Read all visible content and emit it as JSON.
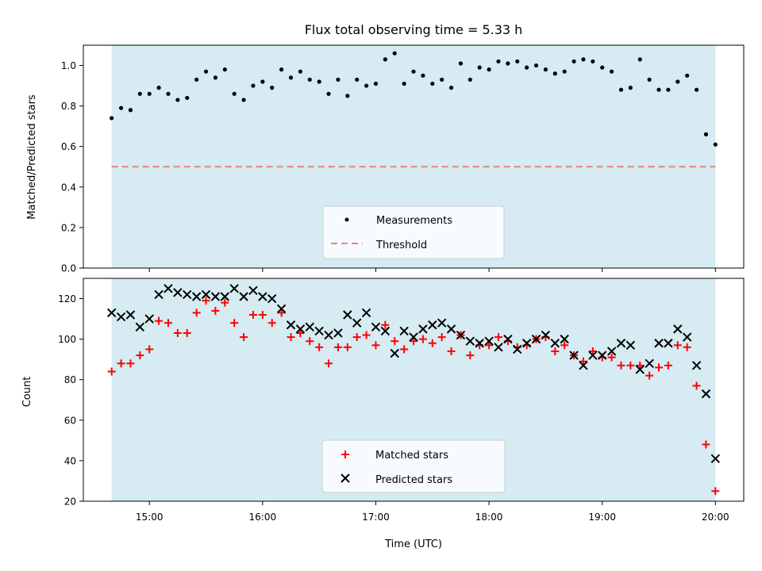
{
  "chart_data": [
    {
      "type": "scatter",
      "title": "Flux total observing time = 5.33 h",
      "ylabel": "Matched/Predicted stars",
      "xlabel": "",
      "ylim": [
        0,
        1.1
      ],
      "yticks": [
        "0.0",
        "0.2",
        "0.4",
        "0.6",
        "0.8",
        "1.0"
      ],
      "xlim": [
        "14:25",
        "20:15"
      ],
      "shaded_span": [
        "14:40",
        "20:00"
      ],
      "shade_color": "#add8e6",
      "legend_position": "lower center",
      "threshold": 0.5,
      "series": [
        {
          "name": "Measurements",
          "marker": "dot",
          "color": "#000000",
          "x": [
            "14:40",
            "14:45",
            "14:50",
            "14:55",
            "15:00",
            "15:05",
            "15:10",
            "15:15",
            "15:20",
            "15:25",
            "15:30",
            "15:35",
            "15:40",
            "15:45",
            "15:50",
            "15:55",
            "16:00",
            "16:05",
            "16:10",
            "16:15",
            "16:20",
            "16:25",
            "16:30",
            "16:35",
            "16:40",
            "16:45",
            "16:50",
            "16:55",
            "17:00",
            "17:05",
            "17:10",
            "17:15",
            "17:20",
            "17:25",
            "17:30",
            "17:35",
            "17:40",
            "17:45",
            "17:50",
            "17:55",
            "18:00",
            "18:05",
            "18:10",
            "18:15",
            "18:20",
            "18:25",
            "18:30",
            "18:35",
            "18:40",
            "18:45",
            "18:50",
            "18:55",
            "19:00",
            "19:05",
            "19:10",
            "19:15",
            "19:20",
            "19:25",
            "19:30",
            "19:35",
            "19:40",
            "19:45",
            "19:50",
            "19:55",
            "20:00"
          ],
          "y": [
            0.74,
            0.79,
            0.78,
            0.86,
            0.86,
            0.89,
            0.86,
            0.83,
            0.84,
            0.93,
            0.97,
            0.94,
            0.98,
            0.86,
            0.83,
            0.9,
            0.92,
            0.89,
            0.98,
            0.94,
            0.97,
            0.93,
            0.92,
            0.86,
            0.93,
            0.85,
            0.93,
            0.9,
            0.91,
            1.03,
            1.06,
            0.91,
            0.97,
            0.95,
            0.91,
            0.93,
            0.89,
            1.01,
            0.93,
            0.99,
            0.98,
            1.02,
            1.01,
            1.02,
            0.99,
            1.0,
            0.98,
            0.96,
            0.97,
            1.02,
            1.03,
            1.02,
            0.99,
            0.97,
            0.88,
            0.89,
            1.03,
            0.93,
            0.88,
            0.88,
            0.92,
            0.95,
            0.88,
            0.66,
            0.61
          ]
        },
        {
          "name": "Threshold",
          "marker": "dashed-line",
          "color": "#f08080",
          "x": [
            "14:40",
            "20:00"
          ],
          "y": [
            0.5,
            0.5
          ]
        }
      ]
    },
    {
      "type": "scatter",
      "title": "",
      "xlabel": "Time (UTC)",
      "ylabel": "Count",
      "ylim": [
        20,
        130
      ],
      "yticks": [
        "20",
        "40",
        "60",
        "80",
        "100",
        "120"
      ],
      "xlim": [
        "14:25",
        "20:15"
      ],
      "xticks": [
        "15:00",
        "16:00",
        "17:00",
        "18:00",
        "19:00",
        "20:00"
      ],
      "shaded_span": [
        "14:40",
        "20:00"
      ],
      "shade_color": "#add8e6",
      "legend_position": "lower center",
      "x": [
        "14:40",
        "14:45",
        "14:50",
        "14:55",
        "15:00",
        "15:05",
        "15:10",
        "15:15",
        "15:20",
        "15:25",
        "15:30",
        "15:35",
        "15:40",
        "15:45",
        "15:50",
        "15:55",
        "16:00",
        "16:05",
        "16:10",
        "16:15",
        "16:20",
        "16:25",
        "16:30",
        "16:35",
        "16:40",
        "16:45",
        "16:50",
        "16:55",
        "17:00",
        "17:05",
        "17:10",
        "17:15",
        "17:20",
        "17:25",
        "17:30",
        "17:35",
        "17:40",
        "17:45",
        "17:50",
        "17:55",
        "18:00",
        "18:05",
        "18:10",
        "18:15",
        "18:20",
        "18:25",
        "18:30",
        "18:35",
        "18:40",
        "18:45",
        "18:50",
        "18:55",
        "19:00",
        "19:05",
        "19:10",
        "19:15",
        "19:20",
        "19:25",
        "19:30",
        "19:35",
        "19:40",
        "19:45",
        "19:50",
        "19:55",
        "20:00"
      ],
      "series": [
        {
          "name": "Matched stars",
          "marker": "plus",
          "color": "#ff0000",
          "values": [
            84,
            88,
            88,
            92,
            95,
            109,
            108,
            103,
            103,
            113,
            119,
            114,
            118,
            108,
            101,
            112,
            112,
            108,
            113,
            101,
            103,
            99,
            96,
            88,
            96,
            96,
            101,
            102,
            97,
            107,
            99,
            95,
            99,
            100,
            98,
            101,
            94,
            102,
            92,
            97,
            97,
            101,
            99,
            96,
            97,
            100,
            101,
            94,
            97,
            92,
            89,
            94,
            91,
            91,
            87,
            87,
            87,
            82,
            86,
            87,
            97,
            96,
            77,
            48,
            25
          ]
        },
        {
          "name": "Predicted stars",
          "marker": "x",
          "color": "#000000",
          "values": [
            113,
            111,
            112,
            106,
            110,
            122,
            125,
            123,
            122,
            121,
            122,
            121,
            121,
            125,
            121,
            124,
            121,
            120,
            115,
            107,
            105,
            106,
            104,
            102,
            103,
            112,
            108,
            113,
            106,
            104,
            93,
            104,
            101,
            105,
            107,
            108,
            105,
            102,
            99,
            98,
            99,
            96,
            100,
            95,
            98,
            100,
            102,
            98,
            100,
            92,
            87,
            92,
            92,
            94,
            98,
            97,
            85,
            88,
            98,
            98,
            105,
            101,
            87,
            73,
            41
          ]
        }
      ]
    }
  ]
}
